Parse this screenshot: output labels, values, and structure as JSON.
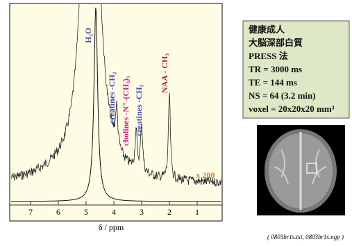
{
  "spectrum": {
    "xlabel": "δ / ppm",
    "xticks": [
      7,
      6,
      5,
      4,
      3,
      2,
      1
    ],
    "xlim": [
      7.75,
      0.1
    ],
    "peaks": [
      {
        "label": "H₂O",
        "ppm": 4.7
      },
      {
        "label": "creatines -CH₂",
        "ppm": 3.9
      },
      {
        "label": "cholines -N⁺-(CH₃)₃",
        "ppm": 3.2
      },
      {
        "label": "creatines -CH₃",
        "ppm": 3.0
      },
      {
        "label": "NAA - CH₃",
        "ppm": 2.0
      }
    ],
    "scale_note": "x 200"
  },
  "info_box": {
    "lines": [
      "健康成人",
      "大脳深部白質",
      "PRESS 法",
      "TR = 3000 ms",
      "TE = 144 ms",
      "NS = 64  (3.2 min)",
      "voxel = 20x20x20 mm³"
    ]
  },
  "caption": "( 0803br1s.txt, 0803br1s.ngp )"
}
